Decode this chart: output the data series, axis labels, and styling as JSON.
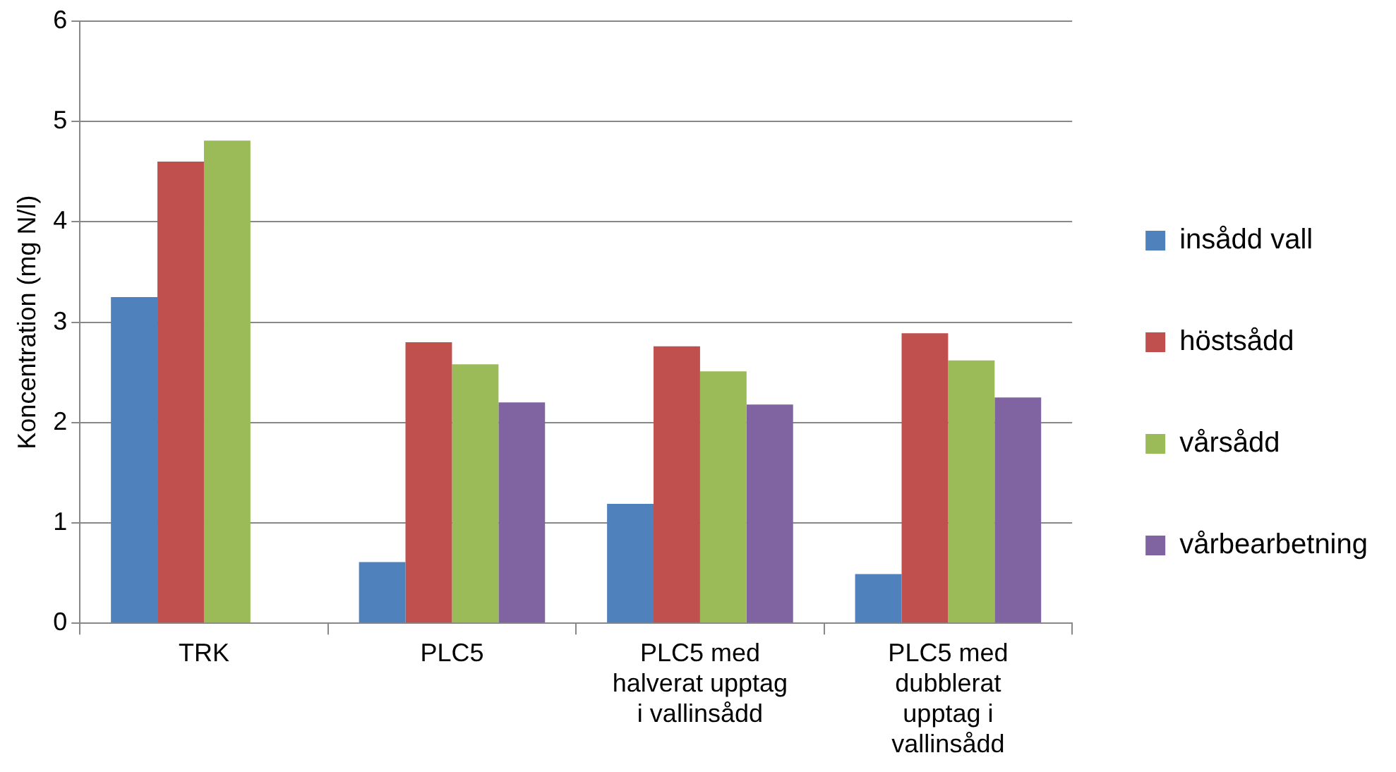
{
  "chart_data": {
    "type": "bar",
    "ylabel": "Koncentration (mg N/l)",
    "categories": [
      "TRK",
      "PLC5",
      "PLC5 med halverat upptag i vallinsådd",
      "PLC5 med dubblerat upptag i vallinsådd"
    ],
    "series": [
      {
        "name": "insådd vall",
        "color": "#4f81bd",
        "values": [
          3.25,
          0.61,
          1.19,
          0.49
        ]
      },
      {
        "name": "höstsådd",
        "color": "#c0504d",
        "values": [
          4.6,
          2.8,
          2.76,
          2.89
        ]
      },
      {
        "name": "vårsådd",
        "color": "#9bbb59",
        "values": [
          4.81,
          2.58,
          2.51,
          2.62
        ]
      },
      {
        "name": "vårbearbetning",
        "color": "#8064a2",
        "values": [
          null,
          2.2,
          2.18,
          2.25
        ]
      }
    ],
    "ylim": [
      0,
      6
    ],
    "yticks": [
      0,
      1,
      2,
      3,
      4,
      5,
      6
    ],
    "grid": "y",
    "legend": "right"
  }
}
